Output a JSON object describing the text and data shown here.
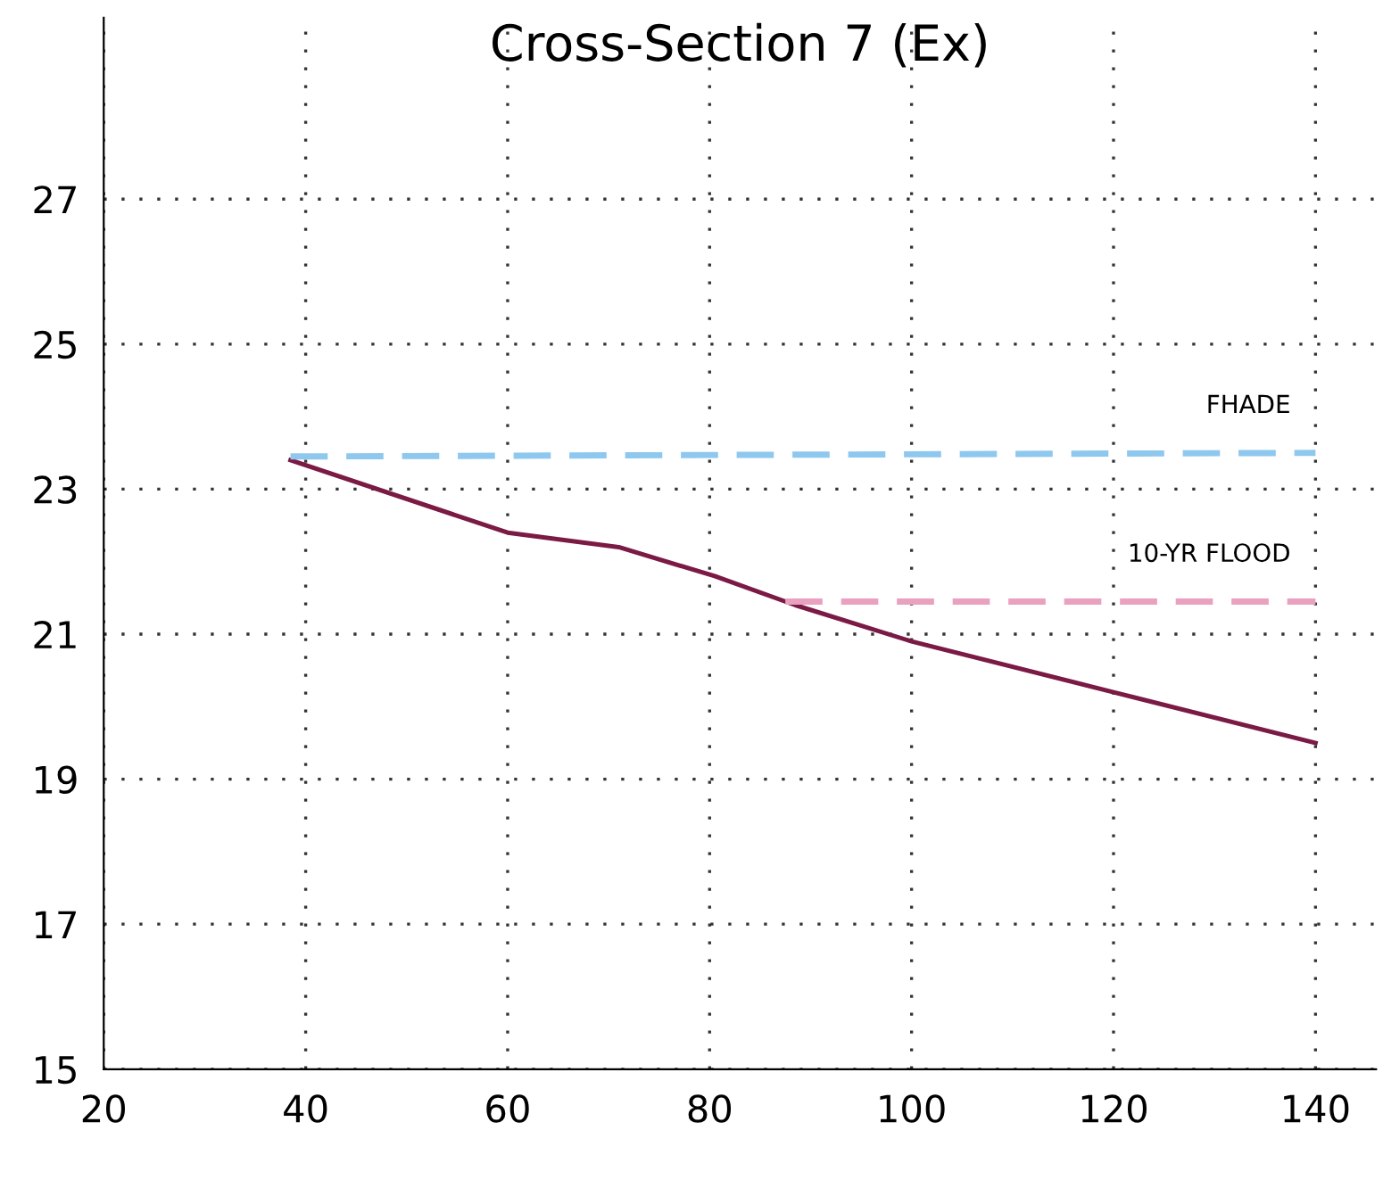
{
  "chart_data": {
    "type": "line",
    "title": "Cross-Section 7 (Ex)",
    "series": [
      {
        "color": "#7a1a45",
        "x": [
          38.5,
          60,
          71,
          80.5,
          88.5,
          100,
          120,
          140
        ],
        "values": [
          23.4,
          22.4,
          22.2,
          21.8,
          21.4,
          20.9,
          20.2,
          19.5
        ],
        "line_style": "solid"
      },
      {
        "name": "FHADE",
        "color": "#8ec8ee",
        "x": [
          38.5,
          140
        ],
        "values": [
          23.45,
          23.5
        ],
        "line_style": "dashed"
      },
      {
        "name": "10-YR FLOOD",
        "color": "#eaa0bf",
        "x": [
          87.5,
          140
        ],
        "values": [
          21.45,
          21.45
        ],
        "line_style": "dashed"
      }
    ],
    "xlim": [
      20,
      146
    ],
    "ylim": [
      15,
      29.5
    ],
    "xticks": [
      20,
      40,
      60,
      80,
      100,
      120,
      140
    ],
    "yticks": [
      15,
      17,
      19,
      21,
      23,
      25,
      27
    ],
    "grid": true,
    "marker": "none"
  }
}
